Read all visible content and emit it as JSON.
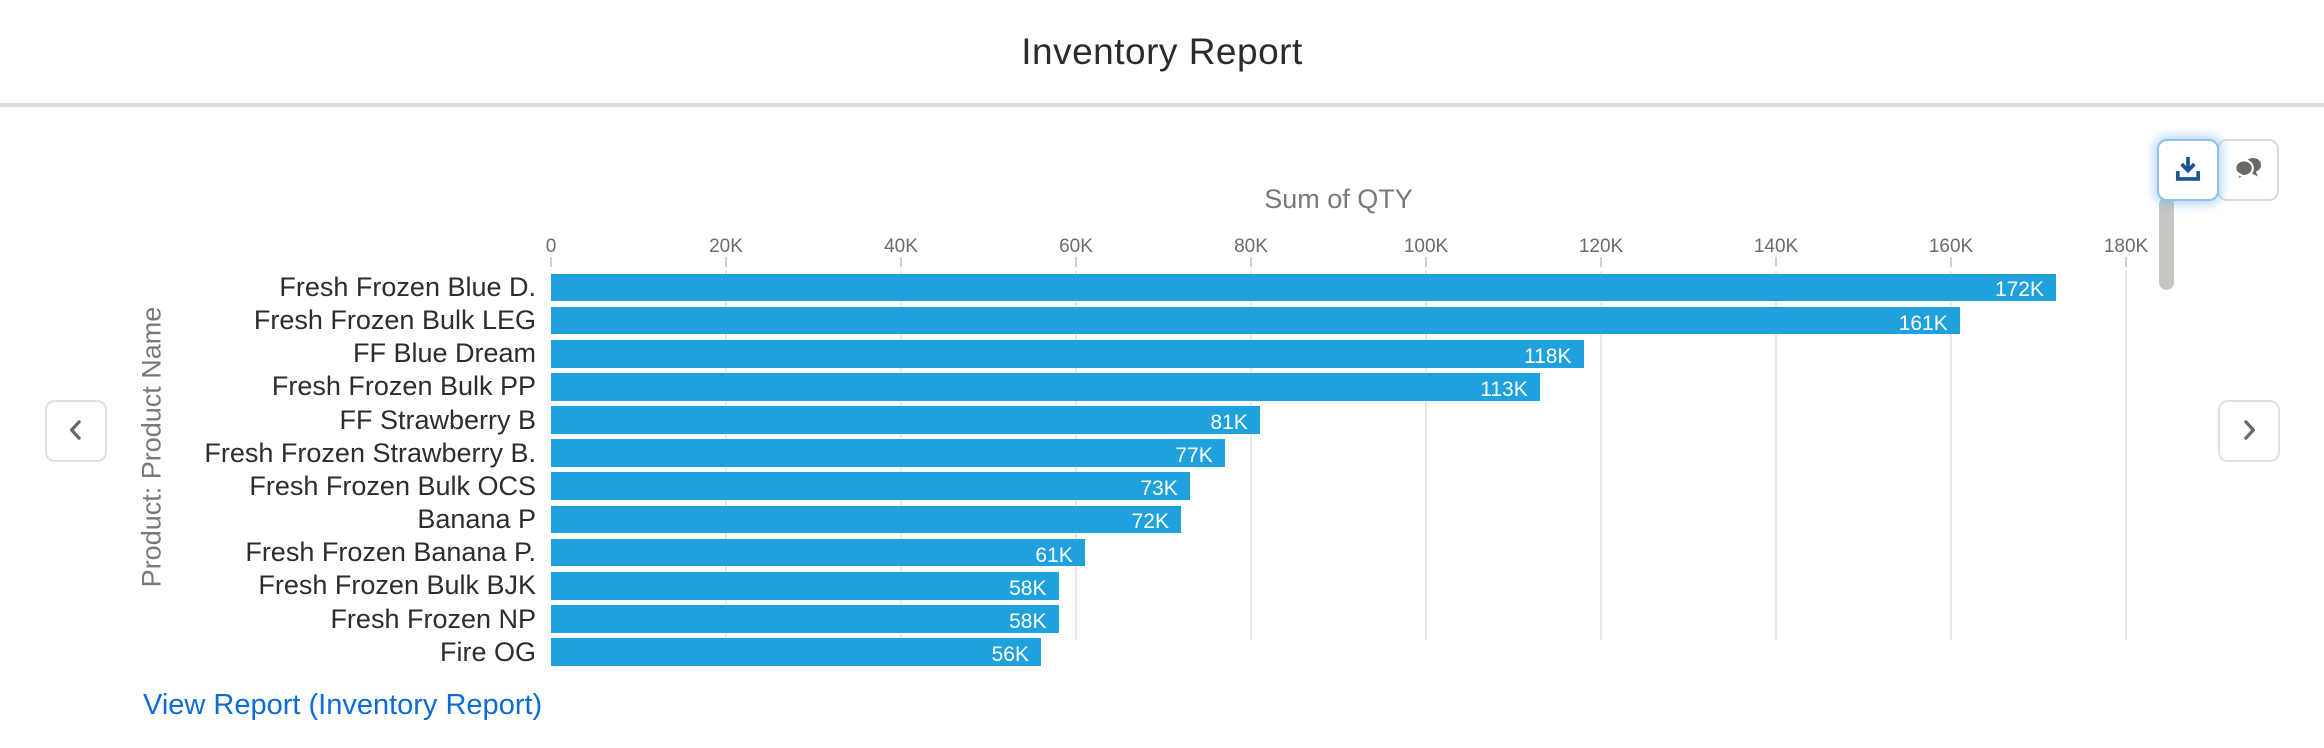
{
  "header": {
    "title": "Inventory Report"
  },
  "chart_data": {
    "type": "bar",
    "orientation": "horizontal",
    "axis_title": "Sum of QTY",
    "y_axis_title": "Product: Product Name",
    "x_ticks": [
      "0",
      "20K",
      "40K",
      "60K",
      "80K",
      "100K",
      "120K",
      "140K",
      "160K",
      "180K"
    ],
    "xlim": [
      0,
      180000
    ],
    "grid": true,
    "bar_color": "#1fa1dd",
    "categories": [
      "Fresh Frozen Blue D.",
      "Fresh Frozen Bulk LEG",
      "FF Blue Dream",
      "Fresh Frozen Bulk PP",
      "FF Strawberry B",
      "Fresh Frozen Strawberry B.",
      "Fresh Frozen Bulk OCS",
      "Banana P",
      "Fresh Frozen Banana P.",
      "Fresh Frozen Bulk BJK",
      "Fresh Frozen NP",
      "Fire OG"
    ],
    "values": [
      172000,
      161000,
      118000,
      113000,
      81000,
      77000,
      73000,
      72000,
      61000,
      58000,
      58000,
      56000
    ],
    "value_labels": [
      "172K",
      "161K",
      "118K",
      "113K",
      "81K",
      "77K",
      "73K",
      "72K",
      "61K",
      "58K",
      "58K",
      "56K"
    ]
  },
  "controls": {
    "prev_icon": "chevron-left",
    "next_icon": "chevron-right",
    "download_icon": "download",
    "chat_icon": "chat-bubbles"
  },
  "colors": {
    "bar": "#1fa1dd",
    "link": "#0c6cd6",
    "icon_blue": "#1a5493",
    "icon_gray": "#6b6966",
    "axis_text": "#6e6c69",
    "divider": "#dcdcdc"
  },
  "footer": {
    "view_report_label": "View Report (Inventory Report)"
  }
}
